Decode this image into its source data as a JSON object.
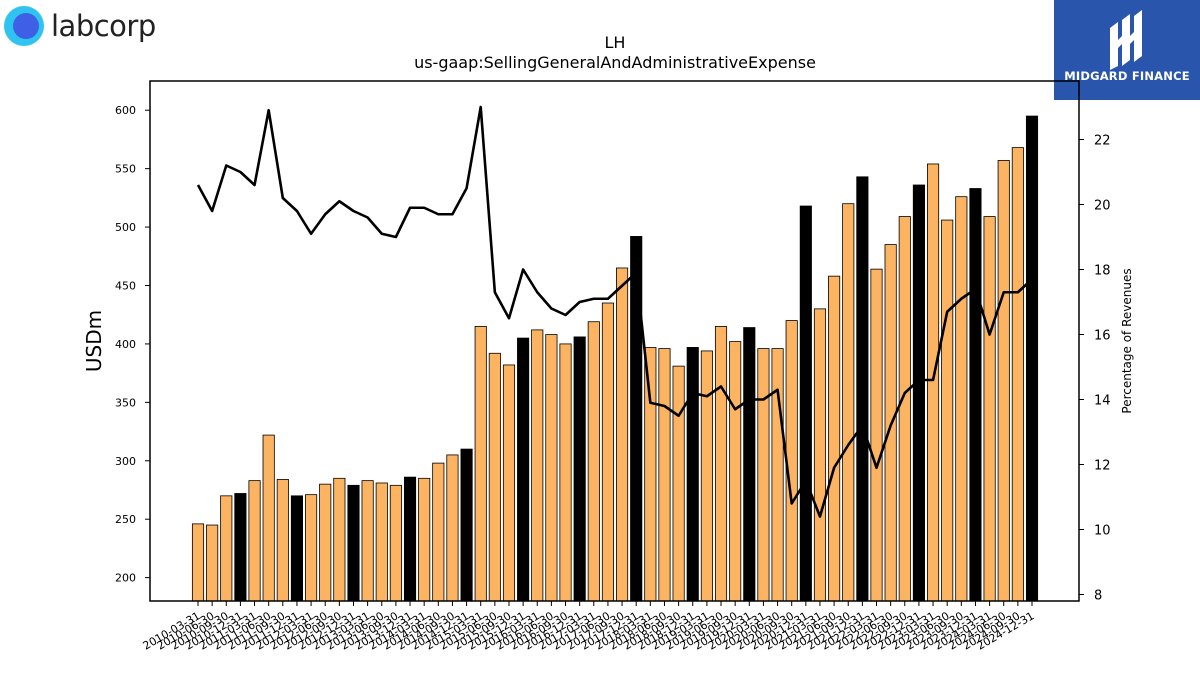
{
  "logos": {
    "left_text": "labcorp",
    "right_text": "MIDGARD FINANCE"
  },
  "colors": {
    "bar_default": "#FDB462",
    "bar_highlight": "#000000",
    "bar_edge": "#000000",
    "line": "#000000"
  },
  "chart_data": {
    "type": "bar",
    "title": "LH",
    "subtitle": "us-gaap:SellingGeneralAndAdministrativeExpense",
    "ylabel": "USDm",
    "y2label": "Percentage of Revenues",
    "ylim": [
      180,
      625
    ],
    "y2lim": [
      7.8,
      23.8
    ],
    "yticks": [
      200,
      250,
      300,
      350,
      400,
      450,
      500,
      550,
      600
    ],
    "y2ticks": [
      8,
      10,
      12,
      14,
      16,
      18,
      20,
      22
    ],
    "categories": [
      "2010-03-31",
      "2010-06-30",
      "2010-09-30",
      "2010-12-31",
      "2011-03-31",
      "2011-06-30",
      "2011-09-30",
      "2011-12-31",
      "2012-03-31",
      "2012-06-30",
      "2012-09-30",
      "2012-12-31",
      "2013-03-31",
      "2013-06-30",
      "2013-09-30",
      "2013-12-31",
      "2014-03-31",
      "2014-06-30",
      "2014-09-30",
      "2014-12-31",
      "2015-03-31",
      "2015-06-30",
      "2015-09-30",
      "2015-12-31",
      "2016-03-31",
      "2016-06-30",
      "2016-09-30",
      "2016-12-31",
      "2017-03-31",
      "2017-06-30",
      "2017-09-30",
      "2017-12-31",
      "2018-03-31",
      "2018-06-30",
      "2018-09-30",
      "2018-12-31",
      "2019-03-31",
      "2019-06-30",
      "2019-09-30",
      "2019-12-31",
      "2020-03-31",
      "2020-06-30",
      "2020-09-30",
      "2020-12-31",
      "2021-03-31",
      "2021-06-30",
      "2021-09-30",
      "2021-12-31",
      "2022-03-31",
      "2022-06-30",
      "2022-09-30",
      "2022-12-31",
      "2023-03-31",
      "2023-06-30",
      "2023-09-30",
      "2023-12-31",
      "2024-03-31",
      "2024-06-30",
      "2024-09-30",
      "2024-12-31"
    ],
    "x_tick_labels": [
      "2010-03-31",
      "2010-06-30",
      "2010-09-30",
      "2010-12-31",
      "2011-03-31",
      "2011-06-30",
      "2011-09-30",
      "2011-12-31",
      "2012-03-31",
      "2012-06-30",
      "2012-09-30",
      "2012-12-31",
      "2013-03-31",
      "2013-06-30",
      "2013-09-30",
      "2013-12-31",
      "2014-03-31",
      "2014-06-30",
      "2014-09-30",
      "2014-12-31",
      "2015-03-31",
      "2015-06-30",
      "2015-09-30",
      "2015-12-31",
      "2016-03-31",
      "2016-06-30",
      "2016-09-30",
      "2016-12-31",
      "2017-03-31",
      "2017-06-30",
      "2017-09-30",
      "2017-12-31",
      "2018-03-31",
      "2018-06-30",
      "2018-09-30",
      "2018-12-31",
      "2019-03-31",
      "2019-06-30",
      "2019-09-30",
      "2019-12-31",
      "2020-03-31",
      "2020-06-30",
      "2020-09-30",
      "2020-12-31",
      "2021-03-31",
      "2021-06-30",
      "2021-09-30",
      "2021-12-31",
      "2022-03-31",
      "2022-06-30",
      "2022-09-30",
      "2022-12-31",
      "2023-03-31",
      "2023-06-30",
      "2023-09-30",
      "2023-12-31",
      "2024-03-31",
      "2024-06-30",
      "2024-09-30",
      "2024-12-31"
    ],
    "series": [
      {
        "axis": "left",
        "kind": "bar",
        "values": [
          246,
          245,
          270,
          272,
          283,
          322,
          284,
          270,
          271,
          280,
          285,
          279,
          283,
          281,
          279,
          286,
          285,
          298,
          305,
          310,
          415,
          392,
          382,
          405,
          412,
          408,
          400,
          406,
          419,
          435,
          465,
          492,
          397,
          396,
          381,
          397,
          394,
          415,
          402,
          414,
          396,
          396,
          420,
          518,
          430,
          458,
          520,
          543,
          464,
          485,
          509,
          536,
          554,
          506,
          526,
          533,
          509,
          557,
          568,
          595
        ],
        "highlight": [
          false,
          false,
          false,
          true,
          false,
          false,
          false,
          true,
          false,
          false,
          false,
          true,
          false,
          false,
          false,
          true,
          false,
          false,
          false,
          true,
          false,
          false,
          false,
          true,
          false,
          false,
          false,
          true,
          false,
          false,
          false,
          true,
          false,
          false,
          false,
          true,
          false,
          false,
          false,
          true,
          false,
          false,
          false,
          true,
          false,
          false,
          false,
          true,
          false,
          false,
          false,
          true,
          false,
          false,
          false,
          true,
          false,
          false,
          false,
          true
        ]
      },
      {
        "axis": "right",
        "kind": "line",
        "values": [
          20.6,
          19.8,
          21.2,
          21.0,
          20.6,
          22.9,
          20.2,
          19.8,
          19.1,
          19.7,
          20.1,
          19.8,
          19.6,
          19.1,
          19.0,
          19.9,
          19.9,
          19.7,
          19.7,
          20.5,
          23.0,
          17.3,
          16.5,
          18.0,
          17.3,
          16.8,
          16.6,
          17.0,
          17.1,
          17.1,
          17.5,
          17.9,
          13.9,
          13.8,
          13.5,
          14.2,
          14.1,
          14.4,
          13.7,
          14.0,
          14.0,
          14.3,
          10.8,
          11.5,
          10.4,
          11.9,
          12.6,
          13.2,
          11.9,
          13.2,
          14.2,
          14.6,
          14.6,
          16.7,
          17.1,
          17.4,
          16.0,
          17.3,
          17.3,
          17.7
        ]
      }
    ],
    "grid": false,
    "legend": "none"
  }
}
